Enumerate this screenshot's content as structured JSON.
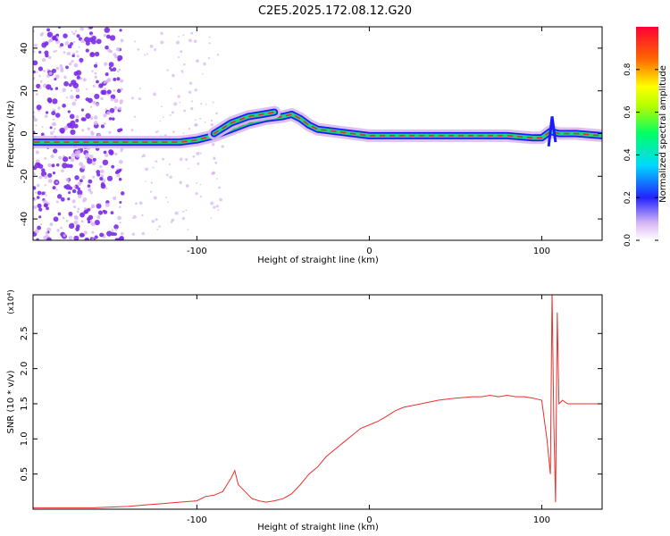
{
  "title": "C2E5.2025.172.08.12.G20",
  "colors": {
    "snr_line": "#e8322e",
    "track_core": "#e0302a",
    "track_mid": "#20d080",
    "track_outer": "#1a1aff",
    "halo": "#d9b8f2",
    "speckle": "#7a2be8"
  },
  "chart_data": [
    {
      "type": "heatmap",
      "xlabel": "Height of straight line (km)",
      "ylabel": "Frequency (Hz)",
      "xlim": [
        -195,
        135
      ],
      "ylim": [
        -50,
        50
      ],
      "x_ticks": [
        -100,
        0,
        100
      ],
      "x_tick_labels": [
        "-100",
        "0",
        "100"
      ],
      "y_ticks": [
        -40,
        -20,
        0,
        20,
        40
      ],
      "y_tick_labels": [
        "-40",
        "-20",
        "0",
        "20",
        "40"
      ],
      "colorbar": {
        "label": "Normalized spectral amplitude",
        "range": [
          0,
          1
        ],
        "ticks": [
          0,
          0.2,
          0.4,
          0.6,
          0.8
        ],
        "tick_labels": [
          "0.0",
          "0.2",
          "0.4",
          "0.6",
          "0.8"
        ]
      },
      "track": [
        {
          "x": -194,
          "y": -4
        },
        {
          "x": -180,
          "y": -4
        },
        {
          "x": -150,
          "y": -4
        },
        {
          "x": -140,
          "y": -4
        },
        {
          "x": -130,
          "y": -4
        },
        {
          "x": -120,
          "y": -4
        },
        {
          "x": -110,
          "y": -4
        },
        {
          "x": -100,
          "y": -3
        },
        {
          "x": -90,
          "y": -1
        },
        {
          "x": -80,
          "y": 2
        },
        {
          "x": -70,
          "y": 5
        },
        {
          "x": -60,
          "y": 7
        },
        {
          "x": -50,
          "y": 8
        },
        {
          "x": -45,
          "y": 9
        },
        {
          "x": -40,
          "y": 7
        },
        {
          "x": -35,
          "y": 4
        },
        {
          "x": -30,
          "y": 2
        },
        {
          "x": -20,
          "y": 1
        },
        {
          "x": -10,
          "y": 0
        },
        {
          "x": 0,
          "y": -1
        },
        {
          "x": 20,
          "y": -1
        },
        {
          "x": 40,
          "y": -1
        },
        {
          "x": 60,
          "y": -1
        },
        {
          "x": 80,
          "y": -1
        },
        {
          "x": 95,
          "y": -2
        },
        {
          "x": 100,
          "y": -2
        },
        {
          "x": 105,
          "y": 1
        },
        {
          "x": 110,
          "y": 0
        },
        {
          "x": 120,
          "y": 0
        },
        {
          "x": 135,
          "y": -1
        }
      ],
      "upper_branch": [
        {
          "x": -90,
          "y": 0
        },
        {
          "x": -80,
          "y": 5
        },
        {
          "x": -70,
          "y": 8
        },
        {
          "x": -62,
          "y": 9
        },
        {
          "x": -55,
          "y": 10
        }
      ]
    },
    {
      "type": "line",
      "xlabel": "Height of straight line (km)",
      "ylabel": "SNR (10 * v/v)",
      "y_multiplier": "(x10⁴)",
      "xlim": [
        -195,
        135
      ],
      "ylim": [
        0,
        3.05
      ],
      "x_ticks": [
        -100,
        0,
        100
      ],
      "x_tick_labels": [
        "-100",
        "0",
        "100"
      ],
      "y_ticks": [
        0.5,
        1.0,
        1.5,
        2.0,
        2.5
      ],
      "y_tick_labels": [
        "0.5",
        "1.0",
        "1.5",
        "2.0",
        "2.5"
      ],
      "series": [
        {
          "x": [
            -195,
            -180,
            -160,
            -150,
            -140,
            -130,
            -120,
            -110,
            -100,
            -95,
            -90,
            -85,
            -80,
            -78,
            -76,
            -72,
            -68,
            -64,
            -60,
            -55,
            -50,
            -45,
            -40,
            -35,
            -30,
            -25,
            -20,
            -15,
            -10,
            -5,
            0,
            5,
            10,
            15,
            20,
            30,
            40,
            50,
            60,
            65,
            70,
            75,
            80,
            85,
            90,
            95,
            100,
            103,
            105,
            106,
            107,
            108,
            109,
            110,
            112,
            115,
            120,
            125,
            130,
            135
          ],
          "y": [
            0.02,
            0.02,
            0.02,
            0.03,
            0.04,
            0.06,
            0.08,
            0.1,
            0.12,
            0.18,
            0.2,
            0.25,
            0.45,
            0.55,
            0.35,
            0.25,
            0.15,
            0.12,
            0.1,
            0.12,
            0.15,
            0.22,
            0.35,
            0.5,
            0.6,
            0.75,
            0.85,
            0.95,
            1.05,
            1.15,
            1.2,
            1.25,
            1.32,
            1.4,
            1.45,
            1.5,
            1.55,
            1.58,
            1.6,
            1.6,
            1.62,
            1.6,
            1.62,
            1.6,
            1.6,
            1.58,
            1.55,
            1.0,
            0.5,
            3.1,
            1.2,
            0.1,
            2.8,
            1.5,
            1.55,
            1.5,
            1.5,
            1.5,
            1.5,
            1.5
          ]
        }
      ]
    }
  ]
}
